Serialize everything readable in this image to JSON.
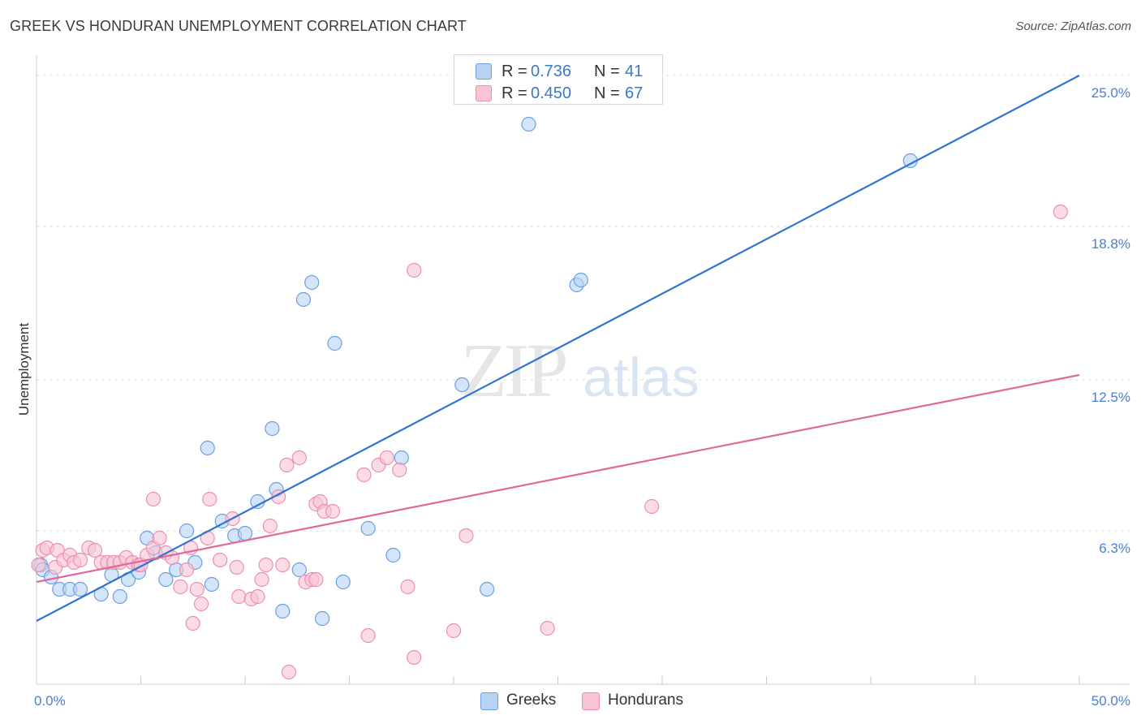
{
  "header": {
    "title": "GREEK VS HONDURAN UNEMPLOYMENT CORRELATION CHART",
    "source": "Source: ZipAtlas.com"
  },
  "watermark": {
    "zip": "ZIP",
    "atlas": "atlas"
  },
  "colors": {
    "greek_fill": "#b9d3f5",
    "greek_stroke": "#6a9fe0",
    "greek_line": "#2f74d0",
    "honduran_fill": "#f9c5d6",
    "honduran_stroke": "#eb8fae",
    "honduran_line": "#e2679a",
    "tick_label": "#4a7fd4",
    "grid": "#dddddd"
  },
  "legend_top": {
    "greek": {
      "r_label": "R =",
      "r_value": "0.736",
      "n_label": "N =",
      "n_value": "41"
    },
    "honduran": {
      "r_label": "R =",
      "r_value": "0.450",
      "n_label": "N =",
      "n_value": "67"
    }
  },
  "legend_bottom": {
    "greek": "Greeks",
    "honduran": "Hondurans"
  },
  "chart_data": {
    "type": "scatter",
    "title": "GREEK VS HONDURAN UNEMPLOYMENT CORRELATION CHART",
    "xlabel": "",
    "ylabel": "Unemployment",
    "xlim": [
      0,
      50
    ],
    "ylim": [
      0,
      25.6
    ],
    "x_tick_labels": [
      "0.0%",
      "50.0%"
    ],
    "y_ticks": [
      6.3,
      12.5,
      18.8,
      25.0
    ],
    "y_tick_labels": [
      "6.3%",
      "12.5%",
      "18.8%",
      "25.0%"
    ],
    "grid": true,
    "series": [
      {
        "name": "Greeks",
        "r": 0.736,
        "n": 41,
        "trend": {
          "x": [
            0,
            50
          ],
          "y": [
            2.6,
            25.0
          ]
        },
        "points": [
          [
            0.2,
            4.9
          ],
          [
            0.3,
            4.7
          ],
          [
            0.7,
            4.4
          ],
          [
            1.1,
            3.9
          ],
          [
            1.6,
            3.9
          ],
          [
            2.1,
            3.9
          ],
          [
            3.1,
            3.7
          ],
          [
            3.6,
            4.5
          ],
          [
            4.0,
            3.6
          ],
          [
            4.4,
            4.3
          ],
          [
            4.9,
            4.6
          ],
          [
            5.3,
            6.0
          ],
          [
            5.7,
            5.4
          ],
          [
            6.2,
            4.3
          ],
          [
            6.7,
            4.7
          ],
          [
            7.2,
            6.3
          ],
          [
            7.6,
            5.0
          ],
          [
            8.2,
            9.7
          ],
          [
            8.4,
            4.1
          ],
          [
            8.9,
            6.7
          ],
          [
            9.5,
            6.1
          ],
          [
            10.0,
            6.2
          ],
          [
            10.6,
            7.5
          ],
          [
            11.3,
            10.5
          ],
          [
            11.5,
            8.0
          ],
          [
            11.8,
            3.0
          ],
          [
            12.6,
            4.7
          ],
          [
            12.8,
            15.8
          ],
          [
            13.2,
            16.5
          ],
          [
            13.7,
            2.7
          ],
          [
            14.3,
            14.0
          ],
          [
            14.7,
            4.2
          ],
          [
            15.9,
            6.4
          ],
          [
            17.1,
            5.3
          ],
          [
            17.5,
            9.3
          ],
          [
            20.4,
            12.3
          ],
          [
            21.6,
            3.9
          ],
          [
            23.6,
            23.0
          ],
          [
            25.9,
            16.4
          ],
          [
            26.1,
            16.6
          ],
          [
            41.9,
            21.5
          ]
        ]
      },
      {
        "name": "Hondurans",
        "r": 0.45,
        "n": 67,
        "trend": {
          "x": [
            0,
            50
          ],
          "y": [
            4.2,
            12.7
          ]
        },
        "points": [
          [
            0.1,
            4.9
          ],
          [
            0.3,
            5.5
          ],
          [
            0.5,
            5.6
          ],
          [
            0.9,
            4.8
          ],
          [
            1.0,
            5.5
          ],
          [
            1.3,
            5.1
          ],
          [
            1.6,
            5.3
          ],
          [
            1.8,
            5.0
          ],
          [
            2.1,
            5.1
          ],
          [
            2.5,
            5.6
          ],
          [
            2.8,
            5.5
          ],
          [
            3.1,
            5.0
          ],
          [
            3.4,
            5.0
          ],
          [
            3.7,
            5.0
          ],
          [
            4.0,
            5.0
          ],
          [
            4.3,
            5.2
          ],
          [
            4.6,
            5.0
          ],
          [
            4.9,
            4.9
          ],
          [
            5.0,
            4.9
          ],
          [
            5.3,
            5.3
          ],
          [
            5.6,
            5.6
          ],
          [
            5.6,
            7.6
          ],
          [
            5.9,
            6.0
          ],
          [
            6.2,
            5.4
          ],
          [
            6.5,
            5.2
          ],
          [
            6.9,
            4.0
          ],
          [
            7.2,
            4.7
          ],
          [
            7.4,
            5.6
          ],
          [
            7.5,
            2.5
          ],
          [
            7.7,
            3.9
          ],
          [
            7.9,
            3.3
          ],
          [
            8.2,
            6.0
          ],
          [
            8.3,
            7.6
          ],
          [
            8.8,
            5.1
          ],
          [
            9.4,
            6.8
          ],
          [
            9.6,
            4.8
          ],
          [
            9.7,
            3.6
          ],
          [
            10.3,
            3.5
          ],
          [
            10.6,
            3.6
          ],
          [
            10.8,
            4.3
          ],
          [
            11.0,
            4.9
          ],
          [
            11.2,
            6.5
          ],
          [
            11.6,
            7.7
          ],
          [
            11.8,
            4.9
          ],
          [
            12.0,
            9.0
          ],
          [
            12.1,
            0.5
          ],
          [
            12.6,
            9.3
          ],
          [
            12.9,
            4.2
          ],
          [
            13.2,
            4.3
          ],
          [
            13.4,
            4.3
          ],
          [
            13.4,
            7.4
          ],
          [
            13.6,
            7.5
          ],
          [
            13.8,
            7.1
          ],
          [
            14.2,
            7.1
          ],
          [
            15.7,
            8.6
          ],
          [
            15.9,
            2.0
          ],
          [
            16.4,
            9.0
          ],
          [
            16.8,
            9.3
          ],
          [
            17.4,
            8.8
          ],
          [
            17.8,
            4.0
          ],
          [
            18.1,
            17.0
          ],
          [
            18.1,
            1.1
          ],
          [
            20.0,
            2.2
          ],
          [
            20.6,
            6.1
          ],
          [
            24.5,
            2.3
          ],
          [
            29.5,
            7.3
          ],
          [
            49.1,
            19.4
          ]
        ]
      }
    ]
  }
}
